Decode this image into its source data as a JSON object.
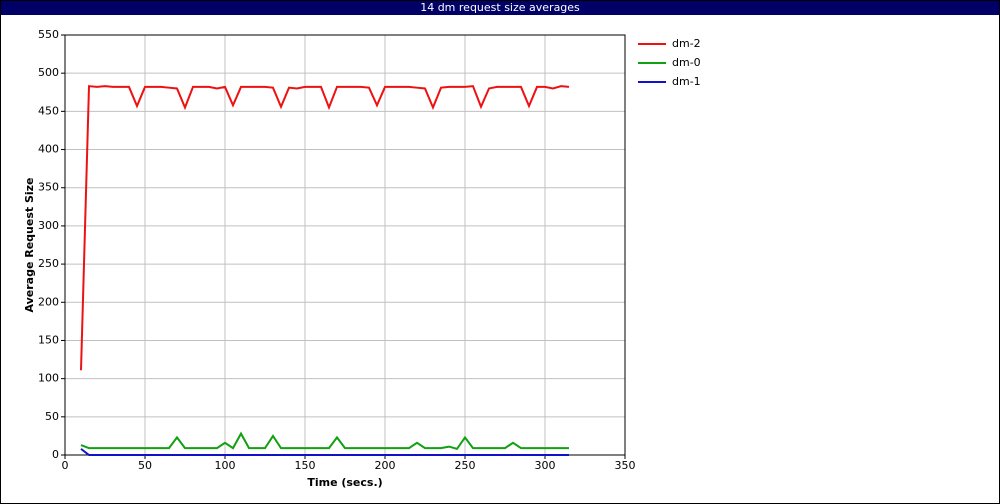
{
  "chart_data": {
    "type": "line",
    "title": "14 dm request size averages",
    "x_label": "Time (secs.)",
    "y_label": "Average Request Size",
    "x": [
      10,
      15,
      20,
      25,
      30,
      35,
      40,
      45,
      50,
      55,
      60,
      65,
      70,
      75,
      80,
      85,
      90,
      95,
      100,
      105,
      110,
      115,
      120,
      125,
      130,
      135,
      140,
      145,
      150,
      155,
      160,
      165,
      170,
      175,
      180,
      185,
      190,
      195,
      200,
      205,
      210,
      215,
      220,
      225,
      230,
      235,
      240,
      245,
      250,
      255,
      260,
      265,
      270,
      275,
      280,
      285,
      290,
      295,
      300,
      305,
      310,
      315
    ],
    "series": [
      {
        "name": "dm-2",
        "color": "#ee1111",
        "values": [
          111,
          483,
          482,
          483,
          482,
          482,
          482,
          457,
          482,
          482,
          482,
          481,
          480,
          455,
          482,
          482,
          482,
          480,
          482,
          458,
          482,
          482,
          482,
          482,
          481,
          456,
          481,
          480,
          482,
          482,
          482,
          455,
          482,
          482,
          482,
          482,
          481,
          458,
          482,
          482,
          482,
          482,
          481,
          480,
          455,
          481,
          482,
          482,
          482,
          483,
          456,
          480,
          482,
          482,
          482,
          482,
          457,
          482,
          482,
          480,
          483,
          482
        ]
      },
      {
        "name": "dm-0",
        "color": "#11a011",
        "values": [
          13,
          9,
          9,
          9,
          9,
          9,
          9,
          9,
          9,
          9,
          9,
          9,
          23,
          9,
          9,
          9,
          9,
          9,
          16,
          9,
          28,
          9,
          9,
          9,
          25,
          9,
          9,
          9,
          9,
          9,
          9,
          9,
          23,
          9,
          9,
          9,
          9,
          9,
          9,
          9,
          9,
          9,
          16,
          9,
          9,
          9,
          11,
          8,
          23,
          9,
          9,
          9,
          9,
          9,
          16,
          9,
          9,
          9,
          9,
          9,
          9,
          9
        ]
      },
      {
        "name": "dm-1",
        "color": "#1111cc",
        "values": [
          8,
          0,
          0,
          0,
          0,
          0,
          0,
          0,
          0,
          0,
          0,
          0,
          0,
          0,
          0,
          0,
          0,
          0,
          0,
          0,
          0,
          0,
          0,
          0,
          0,
          0,
          0,
          0,
          0,
          0,
          0,
          0,
          0,
          0,
          0,
          0,
          0,
          0,
          0,
          0,
          0,
          0,
          0,
          0,
          0,
          0,
          0,
          0,
          0,
          0,
          0,
          0,
          0,
          0,
          0,
          0,
          0,
          0,
          0,
          0,
          0,
          0
        ]
      }
    ],
    "xlim": [
      0,
      350
    ],
    "xticks": [
      0,
      50,
      100,
      150,
      200,
      250,
      300,
      350
    ],
    "ylim": [
      0,
      550
    ],
    "yticks": [
      0,
      50,
      100,
      150,
      200,
      250,
      300,
      350,
      400,
      450,
      500,
      550
    ],
    "grid": true,
    "legend": "right"
  }
}
